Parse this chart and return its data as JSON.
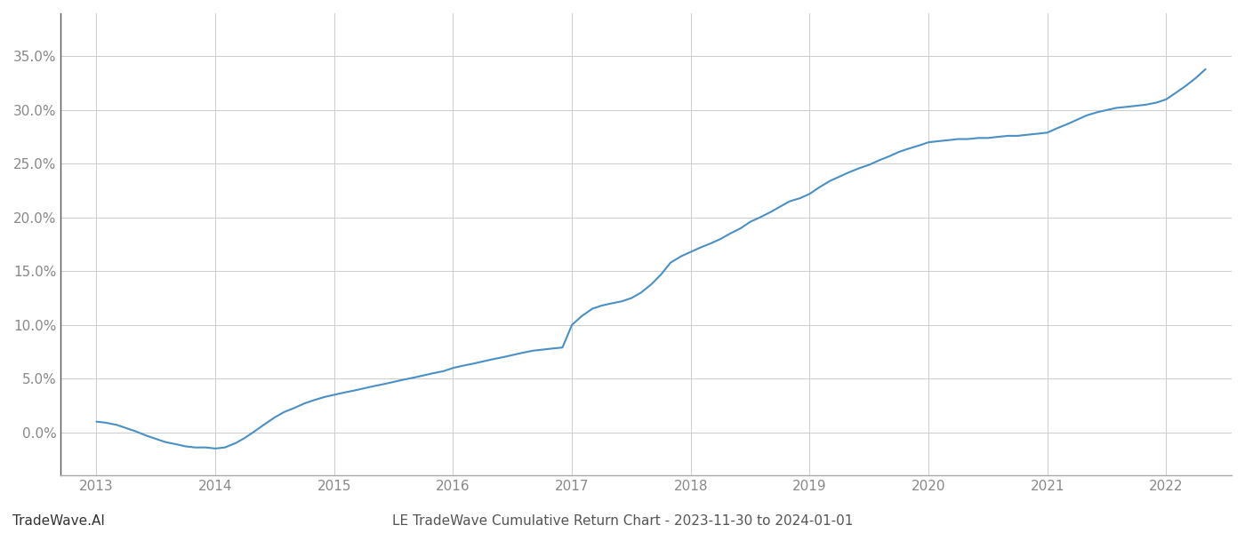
{
  "title": "LE TradeWave Cumulative Return Chart - 2023-11-30 to 2024-01-01",
  "watermark": "TradeWave.AI",
  "line_color": "#4a90c4",
  "background_color": "#ffffff",
  "grid_color": "#cccccc",
  "x_years": [
    2013,
    2014,
    2015,
    2016,
    2017,
    2018,
    2019,
    2020,
    2021,
    2022
  ],
  "x_data": [
    2013.0,
    2013.08,
    2013.17,
    2013.25,
    2013.33,
    2013.42,
    2013.5,
    2013.58,
    2013.67,
    2013.75,
    2013.83,
    2013.92,
    2014.0,
    2014.08,
    2014.17,
    2014.25,
    2014.33,
    2014.42,
    2014.5,
    2014.58,
    2014.67,
    2014.75,
    2014.83,
    2014.92,
    2015.0,
    2015.08,
    2015.17,
    2015.25,
    2015.33,
    2015.42,
    2015.5,
    2015.58,
    2015.67,
    2015.75,
    2015.83,
    2015.92,
    2016.0,
    2016.08,
    2016.17,
    2016.25,
    2016.33,
    2016.42,
    2016.5,
    2016.58,
    2016.67,
    2016.75,
    2016.83,
    2016.92,
    2017.0,
    2017.08,
    2017.17,
    2017.25,
    2017.33,
    2017.42,
    2017.5,
    2017.58,
    2017.67,
    2017.75,
    2017.83,
    2017.92,
    2018.0,
    2018.08,
    2018.17,
    2018.25,
    2018.33,
    2018.42,
    2018.5,
    2018.58,
    2018.67,
    2018.75,
    2018.83,
    2018.92,
    2019.0,
    2019.08,
    2019.17,
    2019.25,
    2019.33,
    2019.42,
    2019.5,
    2019.58,
    2019.67,
    2019.75,
    2019.83,
    2019.92,
    2020.0,
    2020.08,
    2020.17,
    2020.25,
    2020.33,
    2020.42,
    2020.5,
    2020.58,
    2020.67,
    2020.75,
    2020.83,
    2020.92,
    2021.0,
    2021.08,
    2021.17,
    2021.25,
    2021.33,
    2021.42,
    2021.5,
    2021.58,
    2021.67,
    2021.75,
    2021.83,
    2021.92,
    2022.0,
    2022.08,
    2022.17,
    2022.25,
    2022.33
  ],
  "y_data": [
    0.01,
    0.009,
    0.007,
    0.004,
    0.001,
    -0.003,
    -0.006,
    -0.009,
    -0.011,
    -0.013,
    -0.014,
    -0.014,
    -0.015,
    -0.014,
    -0.01,
    -0.005,
    0.001,
    0.008,
    0.014,
    0.019,
    0.023,
    0.027,
    0.03,
    0.033,
    0.035,
    0.037,
    0.039,
    0.041,
    0.043,
    0.045,
    0.047,
    0.049,
    0.051,
    0.053,
    0.055,
    0.057,
    0.06,
    0.062,
    0.064,
    0.066,
    0.068,
    0.07,
    0.072,
    0.074,
    0.076,
    0.077,
    0.078,
    0.079,
    0.1,
    0.108,
    0.115,
    0.118,
    0.12,
    0.122,
    0.125,
    0.13,
    0.138,
    0.147,
    0.158,
    0.164,
    0.168,
    0.172,
    0.176,
    0.18,
    0.185,
    0.19,
    0.196,
    0.2,
    0.205,
    0.21,
    0.215,
    0.218,
    0.222,
    0.228,
    0.234,
    0.238,
    0.242,
    0.246,
    0.249,
    0.253,
    0.257,
    0.261,
    0.264,
    0.267,
    0.27,
    0.271,
    0.272,
    0.273,
    0.273,
    0.274,
    0.274,
    0.275,
    0.276,
    0.276,
    0.277,
    0.278,
    0.279,
    0.283,
    0.287,
    0.291,
    0.295,
    0.298,
    0.3,
    0.302,
    0.303,
    0.304,
    0.305,
    0.307,
    0.31,
    0.316,
    0.323,
    0.33,
    0.338
  ],
  "yticks": [
    0.0,
    0.05,
    0.1,
    0.15,
    0.2,
    0.25,
    0.3,
    0.35
  ],
  "ylim": [
    -0.04,
    0.39
  ],
  "xlim": [
    2012.7,
    2022.55
  ],
  "title_fontsize": 11,
  "watermark_fontsize": 11,
  "tick_label_color": "#888888",
  "title_color": "#555555"
}
